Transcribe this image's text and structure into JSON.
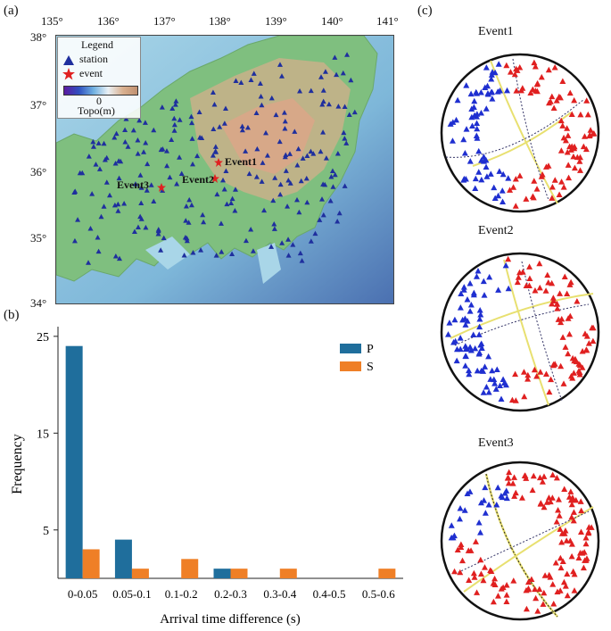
{
  "panels": {
    "a": "(a)",
    "b": "(b)",
    "c": "(c)"
  },
  "map": {
    "lon_ticks": [
      "135°",
      "136°",
      "137°",
      "138°",
      "139°",
      "140°",
      "141°"
    ],
    "lat_ticks": [
      "34°",
      "35°",
      "36°",
      "37°",
      "38°"
    ],
    "legend": {
      "title": "Legend",
      "station": "station",
      "event": "event",
      "colorbar_tick": "0",
      "colorbar_label": "Topo(m)"
    },
    "events": [
      "Event1",
      "Event2",
      "Event3"
    ],
    "colors": {
      "station": "#1f2f9e",
      "event": "#e02020"
    }
  },
  "chart_data": {
    "type": "bar",
    "categories": [
      "0-0.05",
      "0.05-0.1",
      "0.1-0.2",
      "0.2-0.3",
      "0.3-0.4",
      "0.4-0.5",
      "0.5-0.6"
    ],
    "series": [
      {
        "name": "P",
        "values": [
          24,
          4,
          0,
          1,
          0,
          0,
          0
        ],
        "color": "#1f6e9c"
      },
      {
        "name": "S",
        "values": [
          3,
          1,
          2,
          1,
          1,
          0,
          1
        ],
        "color": "#ef7f26"
      }
    ],
    "xlabel": "Arrival time difference (s)",
    "ylabel": "Frequency",
    "yticks": [
      5,
      15,
      25
    ],
    "ylim": [
      0,
      26
    ],
    "legend_position": "top-right"
  },
  "beachballs": {
    "titles": [
      "Event1",
      "Event2",
      "Event3"
    ],
    "colors": {
      "up": "#e02020",
      "down": "#1f2fd0",
      "plane": "#e8e070",
      "aux": "#333366"
    }
  }
}
